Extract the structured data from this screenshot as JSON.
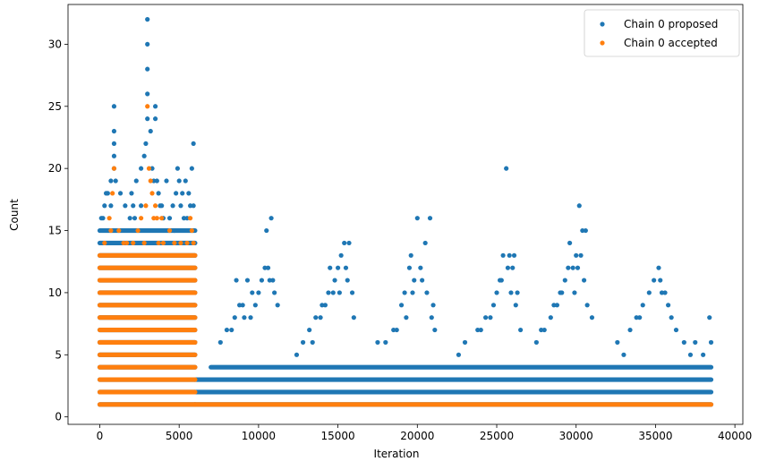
{
  "chart_data": {
    "type": "scatter",
    "xlabel": "Iteration",
    "ylabel": "Count",
    "xlim": [
      -2000,
      40500
    ],
    "ylim": [
      -0.6,
      33.2
    ],
    "xticks": [
      0,
      5000,
      10000,
      15000,
      20000,
      25000,
      30000,
      35000,
      40000
    ],
    "xtick_labels": [
      "0",
      "5000",
      "10000",
      "15000",
      "20000",
      "25000",
      "30000",
      "35000",
      "40000"
    ],
    "yticks": [
      0,
      5,
      10,
      15,
      20,
      25,
      30
    ],
    "ytick_labels": [
      "0",
      "5",
      "10",
      "15",
      "20",
      "25",
      "30"
    ],
    "grid": false,
    "legend_position": "top-right",
    "series": [
      {
        "name": "Chain 0 proposed",
        "color": "#1f77b4",
        "bands": [
          {
            "x_start": 0,
            "x_end": 6000,
            "y_values": [
              1,
              2,
              3,
              4,
              5,
              6,
              7,
              8,
              9,
              10,
              11,
              12,
              13,
              14,
              15
            ]
          },
          {
            "x_start": 6000,
            "x_end": 38500,
            "y_values": [
              1,
              2,
              3
            ]
          },
          {
            "x_start": 7000,
            "x_end": 38500,
            "y_values": [
              4
            ]
          }
        ],
        "points": [
          [
            900,
            25
          ],
          [
            900,
            23
          ],
          [
            900,
            22
          ],
          [
            900,
            21
          ],
          [
            900,
            20
          ],
          [
            700,
            19
          ],
          [
            1000,
            19
          ],
          [
            500,
            18
          ],
          [
            1300,
            18
          ],
          [
            300,
            17
          ],
          [
            700,
            17
          ],
          [
            1600,
            17
          ],
          [
            200,
            16
          ],
          [
            1900,
            16
          ],
          [
            400,
            18
          ],
          [
            100,
            16
          ],
          [
            2000,
            18
          ],
          [
            2300,
            19
          ],
          [
            2600,
            17
          ],
          [
            2600,
            20
          ],
          [
            2800,
            21
          ],
          [
            2900,
            22
          ],
          [
            3000,
            24
          ],
          [
            3000,
            26
          ],
          [
            3000,
            28
          ],
          [
            3000,
            30
          ],
          [
            3000,
            32
          ],
          [
            3200,
            23
          ],
          [
            3300,
            20
          ],
          [
            3400,
            19
          ],
          [
            3500,
            25
          ],
          [
            3500,
            24
          ],
          [
            3600,
            19
          ],
          [
            3700,
            18
          ],
          [
            3800,
            17
          ],
          [
            4000,
            16
          ],
          [
            4200,
            19
          ],
          [
            2100,
            17
          ],
          [
            2200,
            16
          ],
          [
            3900,
            17
          ],
          [
            5000,
            19
          ],
          [
            5200,
            18
          ],
          [
            5400,
            19
          ],
          [
            5600,
            18
          ],
          [
            5800,
            20
          ],
          [
            5900,
            22
          ],
          [
            5700,
            17
          ],
          [
            5500,
            16
          ],
          [
            4800,
            18
          ],
          [
            4600,
            17
          ],
          [
            4400,
            16
          ],
          [
            5100,
            17
          ],
          [
            5300,
            16
          ],
          [
            4900,
            20
          ],
          [
            4700,
            15
          ],
          [
            5900,
            17
          ],
          [
            8000,
            7
          ],
          [
            8500,
            8
          ],
          [
            8600,
            11
          ],
          [
            9000,
            9
          ],
          [
            9300,
            11
          ],
          [
            9600,
            10
          ],
          [
            10000,
            10
          ],
          [
            10200,
            11
          ],
          [
            10500,
            15
          ],
          [
            10800,
            16
          ],
          [
            10600,
            12
          ],
          [
            10900,
            11
          ],
          [
            9500,
            8
          ],
          [
            9800,
            9
          ],
          [
            10400,
            12
          ],
          [
            11000,
            10
          ],
          [
            8300,
            7
          ],
          [
            9100,
            8
          ],
          [
            7600,
            6
          ],
          [
            8800,
            9
          ],
          [
            10700,
            11
          ],
          [
            11200,
            9
          ],
          [
            12800,
            6
          ],
          [
            13200,
            7
          ],
          [
            13600,
            8
          ],
          [
            14000,
            9
          ],
          [
            14400,
            10
          ],
          [
            14500,
            12
          ],
          [
            14800,
            11
          ],
          [
            15000,
            12
          ],
          [
            15200,
            13
          ],
          [
            15400,
            14
          ],
          [
            15700,
            14
          ],
          [
            15600,
            11
          ],
          [
            15900,
            10
          ],
          [
            16000,
            8
          ],
          [
            13900,
            8
          ],
          [
            15100,
            10
          ],
          [
            14200,
            9
          ],
          [
            12400,
            5
          ],
          [
            13400,
            6
          ],
          [
            14700,
            10
          ],
          [
            15500,
            12
          ],
          [
            17500,
            6
          ],
          [
            18000,
            6
          ],
          [
            18500,
            7
          ],
          [
            19000,
            9
          ],
          [
            19200,
            10
          ],
          [
            19500,
            12
          ],
          [
            19600,
            13
          ],
          [
            20000,
            16
          ],
          [
            20300,
            11
          ],
          [
            20500,
            14
          ],
          [
            20800,
            16
          ],
          [
            20600,
            10
          ],
          [
            21000,
            9
          ],
          [
            19800,
            11
          ],
          [
            19300,
            8
          ],
          [
            18700,
            7
          ],
          [
            20200,
            12
          ],
          [
            20900,
            8
          ],
          [
            21100,
            7
          ],
          [
            19700,
            10
          ],
          [
            23000,
            6
          ],
          [
            23800,
            7
          ],
          [
            24300,
            8
          ],
          [
            24800,
            9
          ],
          [
            25000,
            10
          ],
          [
            25200,
            11
          ],
          [
            25400,
            13
          ],
          [
            25600,
            20
          ],
          [
            25700,
            12
          ],
          [
            25800,
            13
          ],
          [
            25900,
            10
          ],
          [
            26000,
            12
          ],
          [
            26100,
            13
          ],
          [
            26300,
            10
          ],
          [
            24600,
            8
          ],
          [
            24000,
            7
          ],
          [
            25300,
            11
          ],
          [
            26200,
            9
          ],
          [
            26500,
            7
          ],
          [
            22600,
            5
          ],
          [
            27500,
            6
          ],
          [
            28000,
            7
          ],
          [
            28400,
            8
          ],
          [
            28800,
            9
          ],
          [
            29000,
            10
          ],
          [
            29300,
            11
          ],
          [
            29500,
            12
          ],
          [
            29600,
            14
          ],
          [
            29800,
            12
          ],
          [
            30000,
            13
          ],
          [
            30200,
            17
          ],
          [
            30300,
            13
          ],
          [
            30400,
            15
          ],
          [
            30600,
            15
          ],
          [
            30500,
            11
          ],
          [
            29100,
            10
          ],
          [
            28600,
            9
          ],
          [
            29900,
            10
          ],
          [
            30100,
            12
          ],
          [
            30700,
            9
          ],
          [
            31000,
            8
          ],
          [
            27800,
            7
          ],
          [
            33400,
            7
          ],
          [
            33800,
            8
          ],
          [
            34200,
            9
          ],
          [
            34600,
            10
          ],
          [
            34900,
            11
          ],
          [
            35200,
            12
          ],
          [
            35300,
            11
          ],
          [
            35600,
            10
          ],
          [
            35800,
            9
          ],
          [
            35400,
            10
          ],
          [
            34000,
            8
          ],
          [
            36000,
            8
          ],
          [
            36300,
            7
          ],
          [
            36800,
            6
          ],
          [
            37200,
            5
          ],
          [
            37500,
            6
          ],
          [
            38000,
            5
          ],
          [
            38400,
            8
          ],
          [
            38500,
            6
          ],
          [
            32600,
            6
          ],
          [
            33000,
            5
          ]
        ]
      },
      {
        "name": "Chain 0 accepted",
        "color": "#ff7f0e",
        "bands": [
          {
            "x_start": 0,
            "x_end": 6000,
            "y_values": [
              1,
              2,
              3,
              4,
              5,
              6,
              7,
              8,
              9,
              10,
              11,
              12,
              13
            ]
          },
          {
            "x_start": 6000,
            "x_end": 38500,
            "y_values": [
              1
            ]
          }
        ],
        "points": [
          [
            900,
            20
          ],
          [
            800,
            18
          ],
          [
            600,
            16
          ],
          [
            700,
            15
          ],
          [
            1200,
            15
          ],
          [
            300,
            14
          ],
          [
            1500,
            14
          ],
          [
            2600,
            16
          ],
          [
            2900,
            17
          ],
          [
            3000,
            25
          ],
          [
            3100,
            20
          ],
          [
            3200,
            19
          ],
          [
            3300,
            18
          ],
          [
            3400,
            16
          ],
          [
            3500,
            17
          ],
          [
            3600,
            16
          ],
          [
            3900,
            16
          ],
          [
            2400,
            15
          ],
          [
            2100,
            14
          ],
          [
            3700,
            14
          ],
          [
            4400,
            15
          ],
          [
            4000,
            14
          ],
          [
            5700,
            16
          ],
          [
            5900,
            14
          ],
          [
            5800,
            15
          ],
          [
            5500,
            14
          ],
          [
            4700,
            14
          ],
          [
            5100,
            14
          ],
          [
            2800,
            14
          ],
          [
            1700,
            14
          ]
        ]
      }
    ]
  }
}
